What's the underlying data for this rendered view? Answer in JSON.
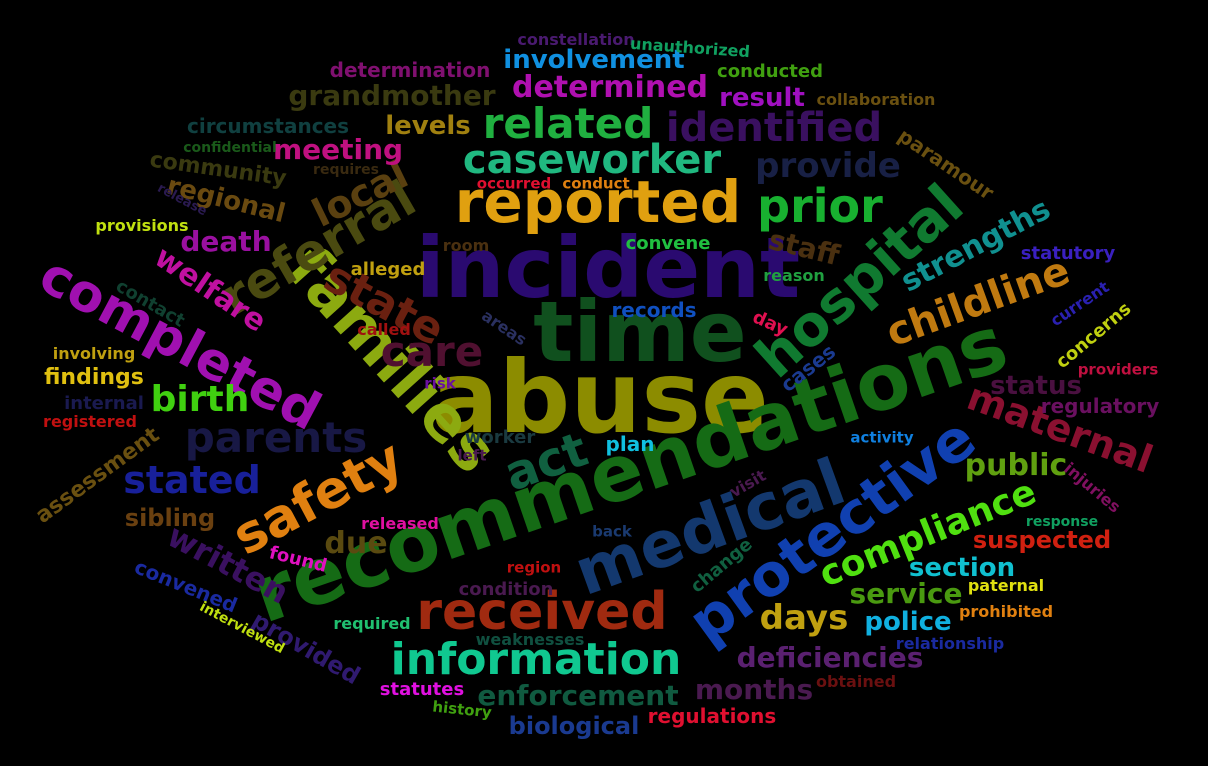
{
  "words": [
    {
      "text": "abuse",
      "color": "#8c8c00"
    },
    {
      "text": "incident",
      "color": "#2a0a70"
    },
    {
      "text": "recommendations",
      "color": "#156b15"
    },
    {
      "text": "time",
      "color": "#10501e"
    },
    {
      "text": "reported",
      "color": "#e0a010"
    },
    {
      "text": "families",
      "color": "#8caa10"
    },
    {
      "text": "hospital",
      "color": "#107a30"
    },
    {
      "text": "medical",
      "color": "#13386e"
    },
    {
      "text": "protective",
      "color": "#1040b0"
    },
    {
      "text": "information",
      "color": "#10c890"
    },
    {
      "text": "received",
      "color": "#a02a10"
    },
    {
      "text": "safety",
      "color": "#e08010"
    },
    {
      "text": "completed",
      "color": "#a010b0"
    },
    {
      "text": "caseworker",
      "color": "#20b880"
    },
    {
      "text": "referral",
      "color": "#4a4a10"
    },
    {
      "text": "compliance",
      "color": "#50e010"
    },
    {
      "text": "parents",
      "color": "#181845"
    },
    {
      "text": "childline",
      "color": "#c07a10"
    },
    {
      "text": "related",
      "color": "#20b040"
    },
    {
      "text": "prior",
      "color": "#18b030"
    },
    {
      "text": "identified",
      "color": "#3a1060"
    },
    {
      "text": "state",
      "color": "#6a2010"
    },
    {
      "text": "act",
      "color": "#106040"
    },
    {
      "text": "care",
      "color": "#501030"
    },
    {
      "text": "maternal",
      "color": "#8a1030"
    },
    {
      "text": "strengths",
      "color": "#109090"
    },
    {
      "text": "local",
      "color": "#5a4010"
    },
    {
      "text": "stated",
      "color": "#18209a"
    },
    {
      "text": "birth",
      "color": "#40d010"
    },
    {
      "text": "written",
      "color": "#3a1060"
    },
    {
      "text": "welfare",
      "color": "#c010a0"
    },
    {
      "text": "days",
      "color": "#c0a010"
    },
    {
      "text": "public",
      "color": "#60a010"
    },
    {
      "text": "service",
      "color": "#4a9a10"
    },
    {
      "text": "section",
      "color": "#10c0d0"
    },
    {
      "text": "police",
      "color": "#10b0e0"
    },
    {
      "text": "deficiencies",
      "color": "#5a2070"
    },
    {
      "text": "months",
      "color": "#4a1a50"
    },
    {
      "text": "enforcement",
      "color": "#105a40"
    },
    {
      "text": "meeting",
      "color": "#c01080"
    },
    {
      "text": "provide",
      "color": "#182045"
    },
    {
      "text": "determined",
      "color": "#b010b0"
    },
    {
      "text": "involvement",
      "color": "#1090e0"
    },
    {
      "text": "death",
      "color": "#9a10a0"
    },
    {
      "text": "regional",
      "color": "#6a4a10"
    },
    {
      "text": "grandmother",
      "color": "#3a3a10"
    },
    {
      "text": "levels",
      "color": "#a08010"
    },
    {
      "text": "result",
      "color": "#a010c0"
    },
    {
      "text": "status",
      "color": "#4a1040"
    },
    {
      "text": "regulatory",
      "color": "#6a1060"
    },
    {
      "text": "suspected",
      "color": "#d02010"
    },
    {
      "text": "due",
      "color": "#5a4a10"
    },
    {
      "text": "sibling",
      "color": "#6a4010"
    },
    {
      "text": "assessment",
      "color": "#6a5010"
    },
    {
      "text": "findings",
      "color": "#e0c010"
    },
    {
      "text": "provided",
      "color": "#301a70"
    },
    {
      "text": "convened",
      "color": "#1a2aa0"
    },
    {
      "text": "biological",
      "color": "#1a3a90"
    },
    {
      "text": "regulations",
      "color": "#e01030"
    },
    {
      "text": "statutes",
      "color": "#e010e0"
    },
    {
      "text": "staff",
      "color": "#4a3010"
    },
    {
      "text": "paramour",
      "color": "#6a5010"
    },
    {
      "text": "concerns",
      "color": "#c0d010"
    },
    {
      "text": "community",
      "color": "#3a3a10"
    },
    {
      "text": "circumstances",
      "color": "#104040"
    },
    {
      "text": "determination",
      "color": "#801070"
    },
    {
      "text": "constellation",
      "color": "#4a1a70"
    },
    {
      "text": "unauthorized",
      "color": "#10a060"
    },
    {
      "text": "conducted",
      "color": "#40a010"
    },
    {
      "text": "collaboration",
      "color": "#6a5010"
    },
    {
      "text": "confidential",
      "color": "#1a5a1a"
    },
    {
      "text": "requires",
      "color": "#3a2a10"
    },
    {
      "text": "occurred",
      "color": "#e01030"
    },
    {
      "text": "conduct",
      "color": "#e08010"
    },
    {
      "text": "release",
      "color": "#2a1a50"
    },
    {
      "text": "provisions",
      "color": "#c0e010"
    },
    {
      "text": "room",
      "color": "#4a3010"
    },
    {
      "text": "convene",
      "color": "#20c040"
    },
    {
      "text": "alleged",
      "color": "#c0a010"
    },
    {
      "text": "reason",
      "color": "#20a040"
    },
    {
      "text": "statutory",
      "color": "#3a20c0"
    },
    {
      "text": "current",
      "color": "#2a20b0"
    },
    {
      "text": "contact",
      "color": "#104030"
    },
    {
      "text": "called",
      "color": "#a01010"
    },
    {
      "text": "areas",
      "color": "#2a3060"
    },
    {
      "text": "records",
      "color": "#1050c0"
    },
    {
      "text": "day",
      "color": "#e01050"
    },
    {
      "text": "cases",
      "color": "#1a3a90"
    },
    {
      "text": "involving",
      "color": "#c0a010"
    },
    {
      "text": "internal",
      "color": "#1a1a50"
    },
    {
      "text": "registered",
      "color": "#c01010"
    },
    {
      "text": "risk",
      "color": "#6a10a0"
    },
    {
      "text": "worker",
      "color": "#1a3a40"
    },
    {
      "text": "left",
      "color": "#4a1a50"
    },
    {
      "text": "plan",
      "color": "#10c0e0"
    },
    {
      "text": "activity",
      "color": "#1080e0"
    },
    {
      "text": "providers",
      "color": "#c01040"
    },
    {
      "text": "injuries",
      "color": "#801060"
    },
    {
      "text": "visit",
      "color": "#4a1a50"
    },
    {
      "text": "response",
      "color": "#10a060"
    },
    {
      "text": "released",
      "color": "#e010a0"
    },
    {
      "text": "found",
      "color": "#e010c0"
    },
    {
      "text": "back",
      "color": "#1a3a70"
    },
    {
      "text": "change",
      "color": "#106040"
    },
    {
      "text": "region",
      "color": "#c01010"
    },
    {
      "text": "condition",
      "color": "#4a1a50"
    },
    {
      "text": "required",
      "color": "#20c070"
    },
    {
      "text": "weaknesses",
      "color": "#105040"
    },
    {
      "text": "paternal",
      "color": "#e0e010"
    },
    {
      "text": "prohibited",
      "color": "#e08010"
    },
    {
      "text": "relationship",
      "color": "#1a2aa0"
    },
    {
      "text": "obtained",
      "color": "#6a1010"
    },
    {
      "text": "history",
      "color": "#40a010"
    },
    {
      "text": "interviewed",
      "color": "#c0e010"
    }
  ]
}
